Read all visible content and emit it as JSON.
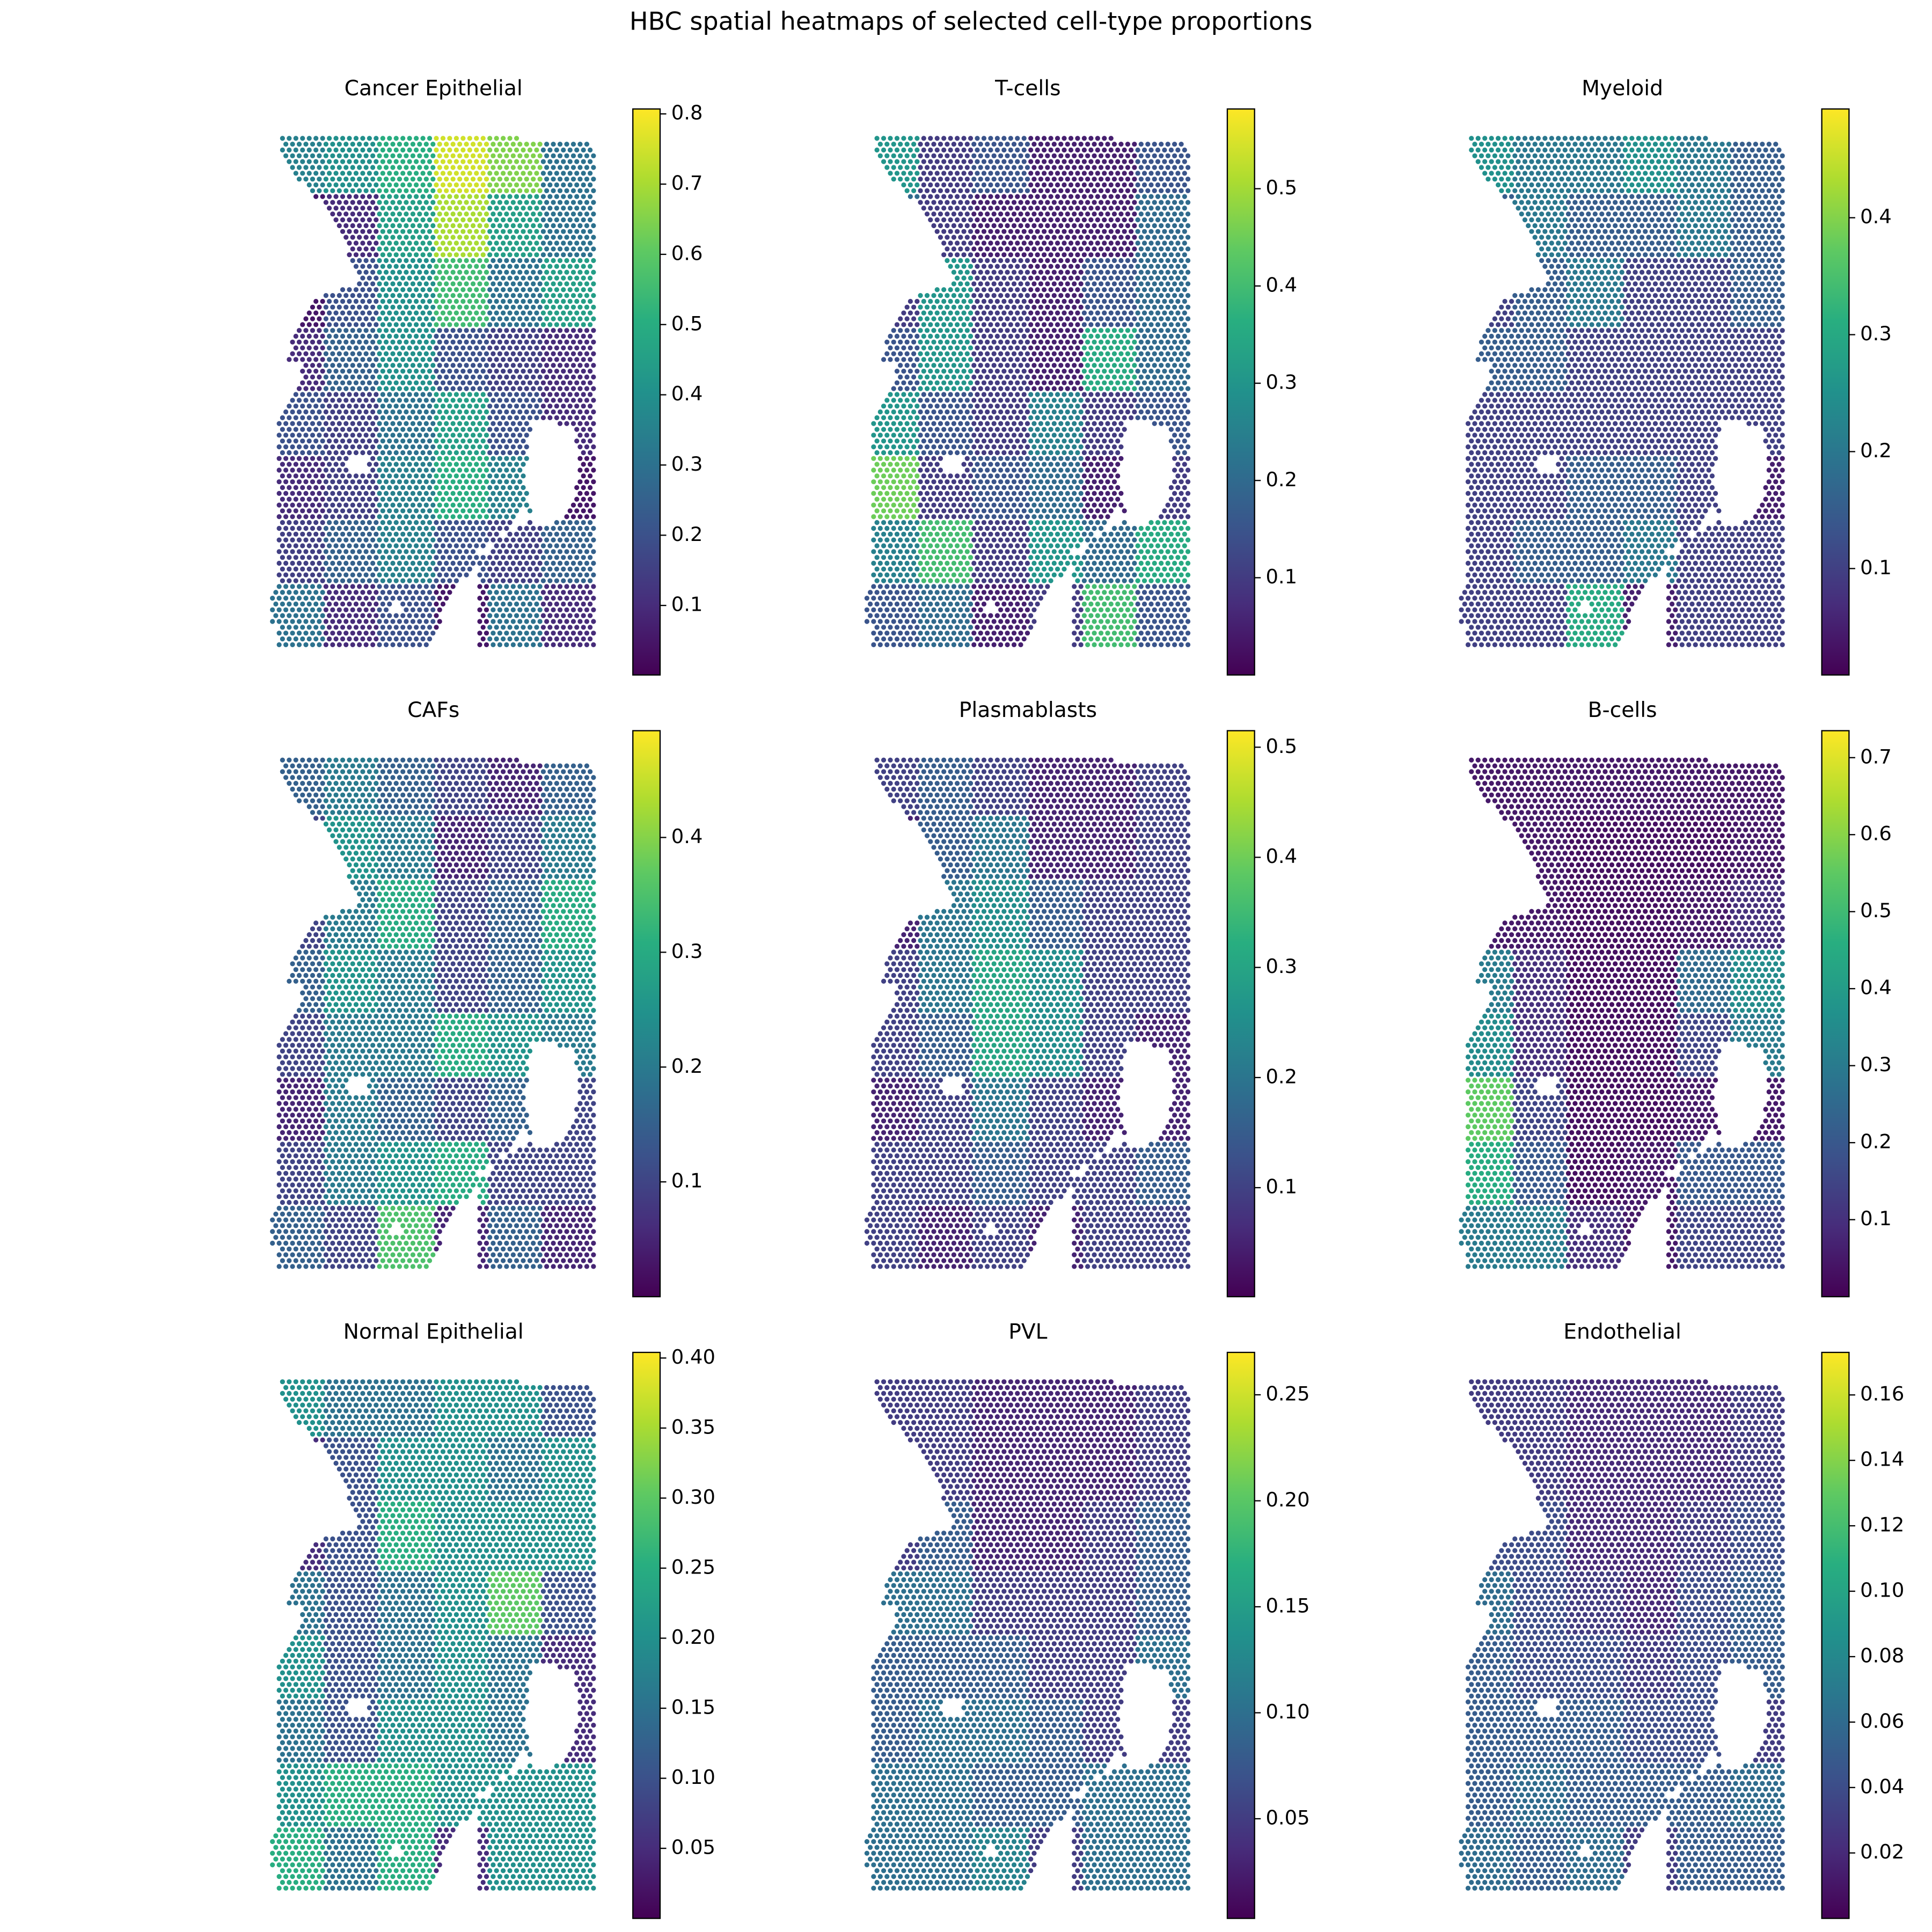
{
  "title": "HBC spatial heatmaps of selected cell-type proportions",
  "chart_data": [
    {
      "type": "heatmap",
      "title": "Cancer Epithelial",
      "colormap": "viridis",
      "clim": [
        0.001,
        0.807
      ],
      "cticks": [
        0.1,
        0.2,
        0.3,
        0.4,
        0.5,
        0.6,
        0.7,
        0.8
      ],
      "values": [
        [
          0.35,
          0.4,
          0.5,
          0.75,
          0.65,
          0.3
        ],
        [
          0.05,
          0.1,
          0.45,
          0.7,
          0.45,
          0.3
        ],
        [
          0.05,
          0.2,
          0.4,
          0.55,
          0.3,
          0.45
        ],
        [
          0.1,
          0.25,
          0.4,
          0.2,
          0.15,
          0.1
        ],
        [
          0.2,
          0.15,
          0.3,
          0.45,
          0.2,
          0.1
        ],
        [
          0.1,
          0.15,
          0.35,
          0.5,
          0.35,
          0.05
        ],
        [
          0.15,
          0.25,
          0.35,
          0.2,
          0.15,
          0.25
        ],
        [
          0.3,
          0.1,
          0.2,
          0.05,
          0.3,
          0.1
        ]
      ]
    },
    {
      "type": "heatmap",
      "title": "T-cells",
      "colormap": "viridis",
      "clim": [
        0.0,
        0.582
      ],
      "cticks": [
        0.1,
        0.2,
        0.3,
        0.4,
        0.5
      ],
      "values": [
        [
          0.3,
          0.1,
          0.15,
          0.05,
          0.05,
          0.15
        ],
        [
          0.2,
          0.1,
          0.05,
          0.05,
          0.05,
          0.2
        ],
        [
          0.1,
          0.3,
          0.1,
          0.05,
          0.15,
          0.2
        ],
        [
          0.15,
          0.3,
          0.1,
          0.05,
          0.35,
          0.2
        ],
        [
          0.3,
          0.15,
          0.1,
          0.25,
          0.1,
          0.15
        ],
        [
          0.45,
          0.1,
          0.15,
          0.2,
          0.05,
          0.1
        ],
        [
          0.25,
          0.4,
          0.1,
          0.3,
          0.2,
          0.35
        ],
        [
          0.15,
          0.2,
          0.05,
          0.1,
          0.4,
          0.15
        ]
      ]
    },
    {
      "type": "heatmap",
      "title": "Myeloid",
      "colormap": "viridis",
      "clim": [
        0.009,
        0.493
      ],
      "cticks": [
        0.1,
        0.2,
        0.3,
        0.4
      ],
      "values": [
        [
          0.25,
          0.2,
          0.2,
          0.25,
          0.2,
          0.15
        ],
        [
          0.15,
          0.2,
          0.15,
          0.15,
          0.2,
          0.15
        ],
        [
          0.1,
          0.15,
          0.2,
          0.1,
          0.1,
          0.15
        ],
        [
          0.15,
          0.15,
          0.1,
          0.1,
          0.1,
          0.1
        ],
        [
          0.1,
          0.1,
          0.1,
          0.1,
          0.1,
          0.1
        ],
        [
          0.1,
          0.1,
          0.15,
          0.15,
          0.1,
          0.05
        ],
        [
          0.1,
          0.15,
          0.15,
          0.2,
          0.1,
          0.1
        ],
        [
          0.1,
          0.1,
          0.3,
          0.05,
          0.1,
          0.1
        ]
      ]
    },
    {
      "type": "heatmap",
      "title": "CAFs",
      "colormap": "viridis",
      "clim": [
        0.0,
        0.493
      ],
      "cticks": [
        0.1,
        0.2,
        0.3,
        0.4
      ],
      "values": [
        [
          0.15,
          0.2,
          0.15,
          0.1,
          0.05,
          0.15
        ],
        [
          0.1,
          0.25,
          0.2,
          0.05,
          0.1,
          0.2
        ],
        [
          0.1,
          0.2,
          0.3,
          0.1,
          0.15,
          0.3
        ],
        [
          0.15,
          0.25,
          0.2,
          0.1,
          0.15,
          0.25
        ],
        [
          0.1,
          0.2,
          0.2,
          0.3,
          0.25,
          0.2
        ],
        [
          0.05,
          0.2,
          0.15,
          0.1,
          0.15,
          0.1
        ],
        [
          0.1,
          0.2,
          0.25,
          0.3,
          0.1,
          0.1
        ],
        [
          0.15,
          0.1,
          0.35,
          0.05,
          0.15,
          0.05
        ]
      ]
    },
    {
      "type": "heatmap",
      "title": "Plasmablasts",
      "colormap": "viridis",
      "clim": [
        0.001,
        0.515
      ],
      "cticks": [
        0.1,
        0.2,
        0.3,
        0.4,
        0.5
      ],
      "values": [
        [
          0.1,
          0.15,
          0.1,
          0.05,
          0.05,
          0.1
        ],
        [
          0.05,
          0.15,
          0.2,
          0.05,
          0.05,
          0.1
        ],
        [
          0.05,
          0.2,
          0.25,
          0.15,
          0.1,
          0.1
        ],
        [
          0.1,
          0.2,
          0.3,
          0.25,
          0.1,
          0.1
        ],
        [
          0.1,
          0.15,
          0.3,
          0.25,
          0.1,
          0.05
        ],
        [
          0.05,
          0.1,
          0.2,
          0.1,
          0.05,
          0.05
        ],
        [
          0.1,
          0.1,
          0.15,
          0.1,
          0.1,
          0.15
        ],
        [
          0.1,
          0.05,
          0.1,
          0.05,
          0.1,
          0.1
        ]
      ]
    },
    {
      "type": "heatmap",
      "title": "B-cells",
      "colormap": "viridis",
      "clim": [
        0.0,
        0.735
      ],
      "cticks": [
        0.1,
        0.2,
        0.3,
        0.4,
        0.5,
        0.6,
        0.7
      ],
      "values": [
        [
          0.05,
          0.05,
          0.05,
          0.05,
          0.05,
          0.05
        ],
        [
          0.05,
          0.05,
          0.03,
          0.03,
          0.03,
          0.05
        ],
        [
          0.05,
          0.05,
          0.03,
          0.03,
          0.05,
          0.1
        ],
        [
          0.3,
          0.1,
          0.03,
          0.03,
          0.25,
          0.35
        ],
        [
          0.35,
          0.1,
          0.03,
          0.03,
          0.15,
          0.3
        ],
        [
          0.55,
          0.15,
          0.03,
          0.03,
          0.05,
          0.05
        ],
        [
          0.45,
          0.2,
          0.03,
          0.05,
          0.2,
          0.2
        ],
        [
          0.3,
          0.3,
          0.1,
          0.05,
          0.15,
          0.15
        ]
      ]
    },
    {
      "type": "heatmap",
      "title": "Normal Epithelial",
      "colormap": "viridis",
      "clim": [
        0.0,
        0.404
      ],
      "cticks": [
        0.05,
        {
          "value": 0.1,
          "label": "0.10"
        },
        0.15,
        {
          "value": 0.2,
          "label": "0.20"
        },
        0.25,
        {
          "value": 0.3,
          "label": "0.30"
        },
        0.35,
        {
          "value": 0.4,
          "label": "0.40"
        }
      ],
      "values": [
        [
          0.2,
          0.15,
          0.15,
          0.2,
          0.2,
          0.1
        ],
        [
          0.05,
          0.1,
          0.2,
          0.2,
          0.15,
          0.2
        ],
        [
          0.05,
          0.1,
          0.25,
          0.2,
          0.2,
          0.2
        ],
        [
          0.15,
          0.1,
          0.15,
          0.2,
          0.3,
          0.1
        ],
        [
          0.2,
          0.1,
          0.15,
          0.2,
          0.15,
          0.05
        ],
        [
          0.15,
          0.1,
          0.2,
          0.2,
          0.15,
          0.05
        ],
        [
          0.2,
          0.25,
          0.25,
          0.2,
          0.2,
          0.2
        ],
        [
          0.25,
          0.15,
          0.25,
          0.05,
          0.2,
          0.2
        ]
      ]
    },
    {
      "type": "heatmap",
      "title": "PVL",
      "colormap": "viridis",
      "clim": [
        0.003,
        0.27
      ],
      "cticks": [
        0.05,
        {
          "value": 0.1,
          "label": "0.10"
        },
        0.15,
        {
          "value": 0.2,
          "label": "0.20"
        },
        0.25
      ],
      "values": [
        [
          0.05,
          0.05,
          0.03,
          0.03,
          0.03,
          0.05
        ],
        [
          0.05,
          0.05,
          0.03,
          0.03,
          0.03,
          0.05
        ],
        [
          0.05,
          0.08,
          0.03,
          0.03,
          0.05,
          0.08
        ],
        [
          0.1,
          0.1,
          0.05,
          0.05,
          0.05,
          0.08
        ],
        [
          0.08,
          0.08,
          0.08,
          0.05,
          0.05,
          0.1
        ],
        [
          0.08,
          0.1,
          0.1,
          0.08,
          0.05,
          0.05
        ],
        [
          0.1,
          0.1,
          0.08,
          0.08,
          0.1,
          0.1
        ],
        [
          0.1,
          0.1,
          0.12,
          0.05,
          0.1,
          0.1
        ]
      ]
    },
    {
      "type": "heatmap",
      "title": "Endothelial",
      "colormap": "viridis",
      "clim": [
        0.0,
        0.173
      ],
      "cticks": [
        0.02,
        0.04,
        0.06,
        0.08,
        {
          "value": 0.1,
          "label": "0.10"
        },
        0.12,
        0.14,
        0.16
      ],
      "values": [
        [
          0.03,
          0.03,
          0.02,
          0.02,
          0.02,
          0.03
        ],
        [
          0.03,
          0.03,
          0.02,
          0.02,
          0.02,
          0.03
        ],
        [
          0.04,
          0.04,
          0.02,
          0.02,
          0.03,
          0.04
        ],
        [
          0.06,
          0.04,
          0.03,
          0.02,
          0.04,
          0.05
        ],
        [
          0.05,
          0.04,
          0.04,
          0.03,
          0.04,
          0.05
        ],
        [
          0.05,
          0.05,
          0.05,
          0.04,
          0.04,
          0.03
        ],
        [
          0.05,
          0.06,
          0.05,
          0.05,
          0.05,
          0.06
        ],
        [
          0.06,
          0.05,
          0.06,
          0.03,
          0.05,
          0.05
        ]
      ]
    }
  ]
}
